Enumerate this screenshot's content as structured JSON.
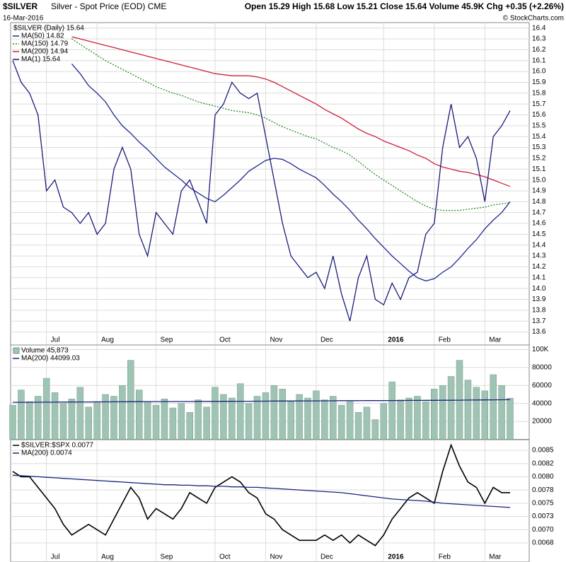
{
  "header": {
    "symbol": "$SILVER",
    "description": "Silver - Spot Price (EOD) CME",
    "date": "16-Mar-2016",
    "quote": "Open 15.29 High 15.68 Low 15.21 Close 15.64 Volume 45.9K Chg +0.35 (+2.26%)",
    "credit": "© StockCharts.com"
  },
  "chart_data": [
    {
      "type": "line",
      "legend_title": "$SILVER (Daily) 15.64",
      "categories": [
        null,
        null,
        null,
        null,
        "Jul",
        null,
        null,
        null,
        null,
        null,
        "Aug",
        null,
        null,
        null,
        null,
        null,
        null,
        "Sep",
        null,
        null,
        null,
        null,
        null,
        null,
        "Oct",
        null,
        null,
        null,
        null,
        null,
        "Nov",
        null,
        null,
        null,
        null,
        null,
        "Dec",
        null,
        null,
        null,
        null,
        null,
        null,
        null,
        "2016",
        null,
        null,
        null,
        null,
        null,
        "Feb",
        null,
        null,
        null,
        null,
        null,
        "Mar",
        null,
        null,
        null
      ],
      "ylim": [
        13.48,
        16.45
      ],
      "yticks": [
        13.6,
        13.7,
        13.8,
        13.9,
        {
          "value": 14,
          "label": "14.0"
        },
        14.1,
        14.2,
        14.3,
        14.4,
        14.5,
        14.6,
        14.7,
        14.8,
        14.9,
        {
          "value": 15,
          "label": "15.0"
        },
        15.1,
        15.2,
        15.3,
        15.4,
        15.5,
        15.6,
        15.7,
        15.8,
        15.9,
        {
          "value": 16,
          "label": "16.0"
        },
        16.1,
        16.2,
        16.3,
        16.4
      ],
      "grid": true,
      "series": [
        {
          "name": "MA(50) 14.82",
          "color": "#1c2a8c",
          "values": [
            null,
            null,
            null,
            null,
            null,
            null,
            null,
            16.07,
            15.98,
            15.87,
            15.8,
            15.72,
            15.6,
            15.5,
            15.43,
            15.35,
            15.28,
            15.2,
            15.12,
            15.06,
            15.0,
            14.93,
            14.88,
            14.83,
            14.8,
            14.86,
            14.93,
            15.0,
            15.08,
            15.13,
            15.18,
            15.2,
            15.19,
            15.15,
            15.1,
            15.06,
            15.02,
            14.95,
            14.87,
            14.8,
            14.72,
            14.63,
            14.55,
            14.46,
            14.38,
            14.3,
            14.23,
            14.16,
            14.1,
            14.07,
            14.09,
            14.15,
            14.2,
            14.28,
            14.37,
            14.45,
            14.55,
            14.63,
            14.7,
            14.8
          ]
        },
        {
          "name": "MA(150) 14.79",
          "color": "#228b22",
          "style": "dotted",
          "values": [
            null,
            null,
            null,
            null,
            null,
            null,
            null,
            16.3,
            16.25,
            16.2,
            16.15,
            16.1,
            16.06,
            16.02,
            15.98,
            15.94,
            15.9,
            15.86,
            15.83,
            15.8,
            15.78,
            15.75,
            15.72,
            15.7,
            15.68,
            15.66,
            15.64,
            15.63,
            15.62,
            15.6,
            15.57,
            15.53,
            15.49,
            15.46,
            15.43,
            15.4,
            15.38,
            15.34,
            15.3,
            15.27,
            15.23,
            15.17,
            15.11,
            15.05,
            15.0,
            14.95,
            14.9,
            14.85,
            14.8,
            14.76,
            14.73,
            14.72,
            14.72,
            14.72,
            14.73,
            14.74,
            14.75,
            14.77,
            14.78,
            14.79
          ]
        },
        {
          "name": "MA(200) 14.94",
          "color": "#cc1f3a",
          "values": [
            null,
            null,
            null,
            null,
            null,
            null,
            null,
            16.32,
            16.3,
            16.28,
            16.26,
            16.24,
            16.22,
            16.2,
            16.18,
            16.16,
            16.14,
            16.12,
            16.1,
            16.08,
            16.06,
            16.04,
            16.02,
            16.0,
            15.98,
            15.97,
            15.96,
            15.96,
            15.96,
            15.95,
            15.93,
            15.9,
            15.86,
            15.82,
            15.78,
            15.74,
            15.7,
            15.65,
            15.61,
            15.57,
            15.52,
            15.47,
            15.43,
            15.4,
            15.36,
            15.33,
            15.3,
            15.27,
            15.23,
            15.2,
            15.15,
            15.12,
            15.1,
            15.08,
            15.07,
            15.05,
            15.03,
            15.0,
            14.97,
            14.94
          ]
        },
        {
          "name": "MA(1) 15.64",
          "color": "#1a1a7a",
          "values": [
            16.1,
            15.9,
            15.8,
            15.6,
            14.9,
            15.0,
            14.75,
            14.7,
            14.6,
            14.7,
            14.5,
            14.6,
            15.1,
            15.3,
            15.1,
            14.5,
            14.3,
            14.7,
            14.6,
            14.5,
            14.9,
            15.0,
            14.8,
            14.6,
            15.6,
            15.7,
            15.9,
            15.8,
            15.75,
            15.8,
            15.4,
            15.0,
            14.6,
            14.3,
            14.2,
            14.1,
            14.15,
            14.0,
            14.3,
            13.95,
            13.7,
            14.1,
            14.3,
            13.9,
            13.85,
            14.05,
            13.9,
            14.1,
            14.15,
            14.5,
            14.6,
            15.3,
            15.7,
            15.3,
            15.4,
            15.2,
            14.8,
            15.4,
            15.5,
            15.64
          ]
        }
      ]
    },
    {
      "type": "bar",
      "ylim": [
        0,
        105000
      ],
      "yticks": [
        {
          "value": 100000,
          "label": "100K"
        },
        80000,
        60000,
        40000,
        20000
      ],
      "grid": true,
      "series": [
        {
          "name": "Volume 45,873",
          "color": "#9fc4b4",
          "values": [
            38000,
            55000,
            42000,
            48000,
            68000,
            52000,
            40000,
            45000,
            58000,
            36000,
            42000,
            50000,
            48000,
            60000,
            88000,
            55000,
            42000,
            38000,
            45000,
            35000,
            40000,
            30000,
            44000,
            36000,
            58000,
            50000,
            46000,
            62000,
            40000,
            48000,
            52000,
            60000,
            56000,
            42000,
            50000,
            46000,
            54000,
            44000,
            48000,
            38000,
            42000,
            30000,
            36000,
            22000,
            40000,
            64000,
            44000,
            46000,
            48000,
            42000,
            56000,
            60000,
            70000,
            88000,
            66000,
            58000,
            54000,
            72000,
            60000,
            45873
          ]
        },
        {
          "name": "MA(200) 44099.03",
          "color": "#1a237e",
          "type": "line",
          "values": [
            41200,
            41200,
            41300,
            41300,
            41400,
            41400,
            41500,
            41500,
            41600,
            41600,
            41700,
            41700,
            41800,
            41800,
            41900,
            41900,
            42000,
            42000,
            42000,
            42100,
            42100,
            42100,
            42200,
            42200,
            42200,
            42300,
            42300,
            42400,
            42400,
            42500,
            42500,
            42600,
            42600,
            42700,
            42700,
            42800,
            42800,
            42900,
            42900,
            43000,
            43000,
            43000,
            43100,
            43100,
            43100,
            43200,
            43200,
            43300,
            43300,
            43400,
            43400,
            43500,
            43500,
            43600,
            43700,
            43800,
            43900,
            44000,
            44050,
            44099.03
          ]
        }
      ]
    },
    {
      "type": "line",
      "categories": [
        null,
        null,
        null,
        null,
        "Jul",
        null,
        null,
        null,
        null,
        null,
        "Aug",
        null,
        null,
        null,
        null,
        null,
        null,
        "Sep",
        null,
        null,
        null,
        null,
        null,
        null,
        "Oct",
        null,
        null,
        null,
        null,
        null,
        "Nov",
        null,
        null,
        null,
        null,
        null,
        "Dec",
        null,
        null,
        null,
        null,
        null,
        null,
        null,
        "2016",
        null,
        null,
        null,
        null,
        null,
        "Feb",
        null,
        null,
        null,
        null,
        null,
        "Mar",
        null,
        null,
        null
      ],
      "ylim": [
        0.00639,
        0.0087
      ],
      "yticks": [
        0.0085,
        {
          "value": 0.00825,
          "label": "0.0082"
        },
        {
          "value": 0.008,
          "label": "0.0080"
        },
        {
          "value": 0.00775,
          "label": "0.0078"
        },
        0.0075,
        {
          "value": 0.00725,
          "label": "0.0073"
        },
        {
          "value": 0.007,
          "label": "0.0070"
        },
        {
          "value": 0.00675,
          "label": "0.0068"
        }
      ],
      "grid": true,
      "series": [
        {
          "name": "$SILVER:$SPX 0.0077",
          "color": "#000000",
          "values": [
            0.0081,
            0.008,
            0.008,
            0.0078,
            0.0076,
            0.0074,
            0.0071,
            0.0069,
            0.007,
            0.0071,
            0.007,
            0.0069,
            0.0072,
            0.0075,
            0.0078,
            0.0076,
            0.0072,
            0.0074,
            0.0073,
            0.0072,
            0.0074,
            0.0077,
            0.0076,
            0.0075,
            0.0078,
            0.0079,
            0.008,
            0.0079,
            0.0077,
            0.0076,
            0.0073,
            0.0072,
            0.007,
            0.0069,
            0.0068,
            0.0068,
            0.0068,
            0.0069,
            0.0068,
            0.0069,
            0.00675,
            0.0069,
            0.0068,
            0.0067,
            0.0069,
            0.0072,
            0.0074,
            0.0076,
            0.0077,
            0.0076,
            0.0075,
            0.0081,
            0.0086,
            0.0082,
            0.0079,
            0.0078,
            0.0075,
            0.0078,
            0.0077,
            0.0077
          ]
        },
        {
          "name": "MA(200) 0.0074",
          "color": "#1a237e",
          "values": [
            0.00803,
            0.00802,
            0.00801,
            0.008,
            0.00799,
            0.00798,
            0.00797,
            0.00796,
            0.00795,
            0.00794,
            0.00793,
            0.00792,
            0.00791,
            0.0079,
            0.00789,
            0.00788,
            0.00787,
            0.00786,
            0.00785,
            0.00785,
            0.00784,
            0.00784,
            0.00783,
            0.00783,
            0.00782,
            0.00782,
            0.00781,
            0.00781,
            0.0078,
            0.0078,
            0.00779,
            0.00778,
            0.00777,
            0.00776,
            0.00775,
            0.00774,
            0.00773,
            0.00772,
            0.00771,
            0.0077,
            0.00768,
            0.00766,
            0.00764,
            0.00762,
            0.0076,
            0.00758,
            0.00757,
            0.00756,
            0.00755,
            0.00754,
            0.00752,
            0.0075,
            0.00749,
            0.00748,
            0.00747,
            0.00746,
            0.00745,
            0.00744,
            0.00743,
            0.00742
          ]
        }
      ]
    }
  ]
}
